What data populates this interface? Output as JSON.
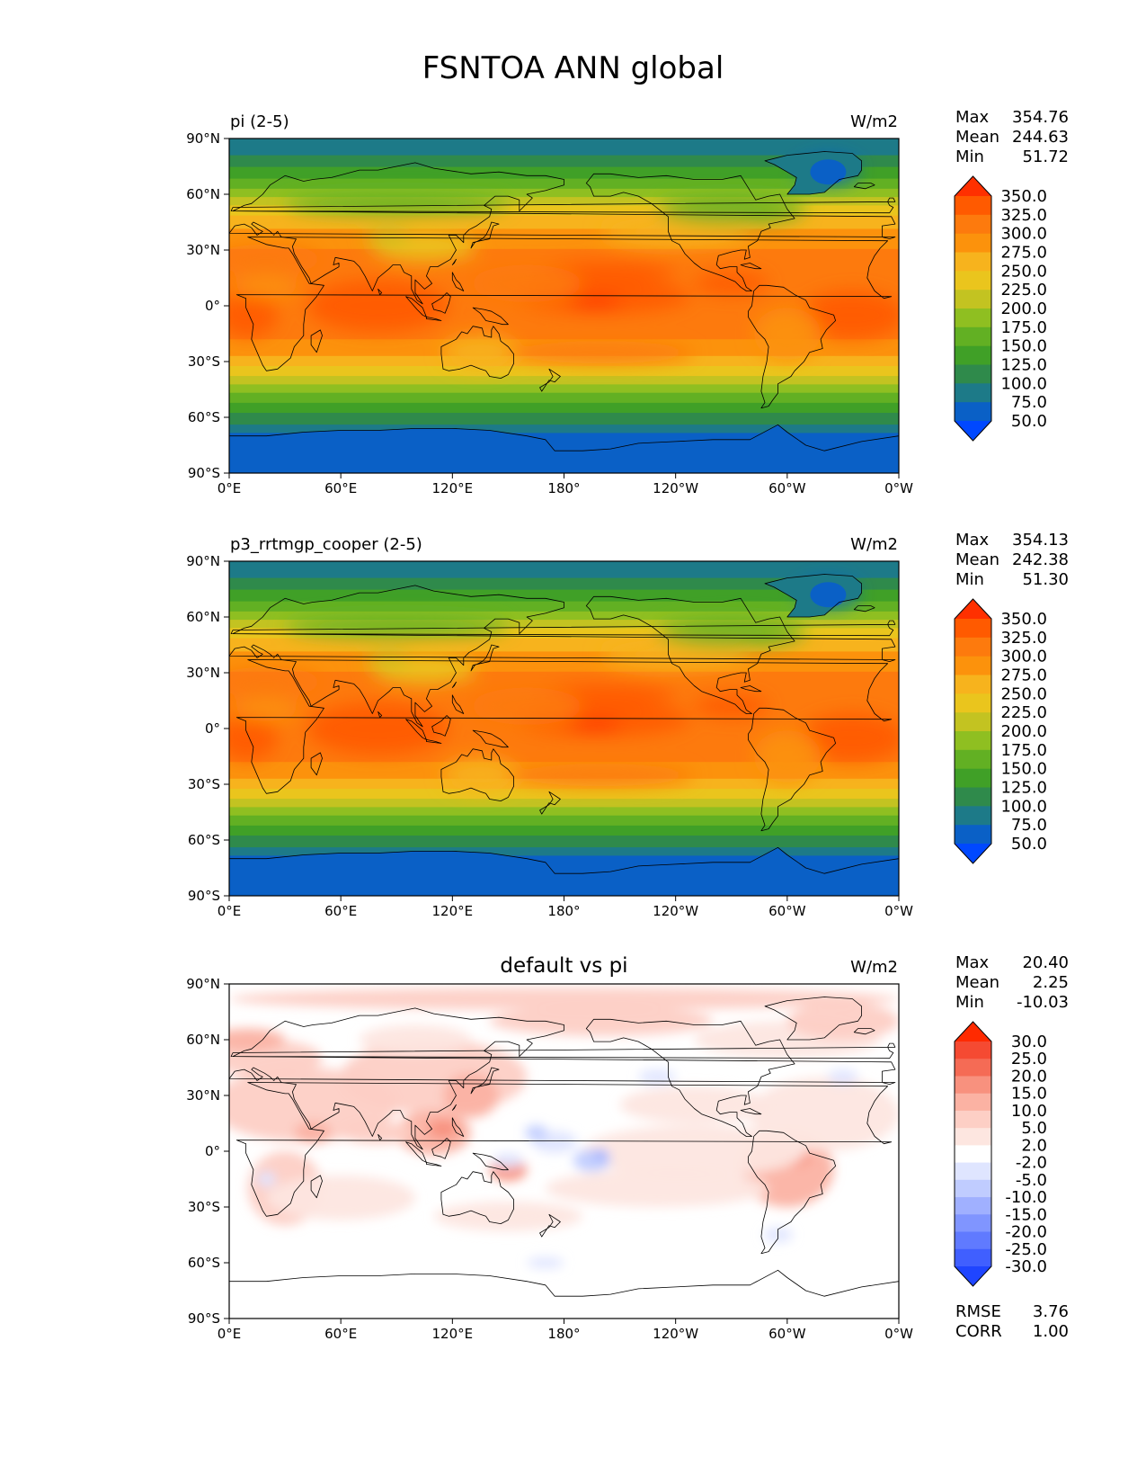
{
  "title": "FSNTOA ANN global",
  "x_ticks": [
    "0°E",
    "60°E",
    "120°E",
    "180°",
    "120°W",
    "60°W",
    "0°W"
  ],
  "y_ticks": [
    "90°N",
    "60°N",
    "30°N",
    "0°",
    "30°S",
    "60°S",
    "90°S"
  ],
  "panels": [
    {
      "left_title": "pi (2-5)",
      "center_title": "",
      "units": "W/m2",
      "stats": [
        {
          "label": "Max",
          "value": "354.76"
        },
        {
          "label": "Mean",
          "value": "244.63"
        },
        {
          "label": "Min",
          "value": "51.72"
        }
      ],
      "colorbar_labels": [
        "350.0",
        "325.0",
        "300.0",
        "275.0",
        "250.0",
        "225.0",
        "200.0",
        "175.0",
        "150.0",
        "125.0",
        "100.0",
        "75.0",
        "50.0"
      ],
      "colorbar_colors": [
        "#ff3000",
        "#ff5a00",
        "#fd7a0d",
        "#fc920c",
        "#f7b31d",
        "#eac51d",
        "#c3c321",
        "#8fbf21",
        "#62b023",
        "#40a027",
        "#2f8a4b",
        "#1d7a88",
        "#0a60c6",
        "#0048ff"
      ],
      "extra_stats": []
    },
    {
      "left_title": "p3_rrtmgp_cooper (2-5)",
      "center_title": "",
      "units": "W/m2",
      "stats": [
        {
          "label": "Max",
          "value": "354.13"
        },
        {
          "label": "Mean",
          "value": "242.38"
        },
        {
          "label": "Min",
          "value": "51.30"
        }
      ],
      "colorbar_labels": [
        "350.0",
        "325.0",
        "300.0",
        "275.0",
        "250.0",
        "225.0",
        "200.0",
        "175.0",
        "150.0",
        "125.0",
        "100.0",
        "75.0",
        "50.0"
      ],
      "colorbar_colors": [
        "#ff3000",
        "#ff5a00",
        "#fd7a0d",
        "#fc920c",
        "#f7b31d",
        "#eac51d",
        "#c3c321",
        "#8fbf21",
        "#62b023",
        "#40a027",
        "#2f8a4b",
        "#1d7a88",
        "#0a60c6",
        "#0048ff"
      ],
      "extra_stats": []
    },
    {
      "left_title": "",
      "center_title": "default vs pi",
      "units": "W/m2",
      "stats": [
        {
          "label": "Max",
          "value": "20.40"
        },
        {
          "label": "Mean",
          "value": "2.25"
        },
        {
          "label": "Min",
          "value": "-10.03"
        }
      ],
      "colorbar_labels": [
        "30.0",
        "25.0",
        "20.0",
        "15.0",
        "10.0",
        "5.0",
        "2.0",
        "-2.0",
        "-5.0",
        "-10.0",
        "-15.0",
        "-20.0",
        "-25.0",
        "-30.0"
      ],
      "colorbar_colors": [
        "#ff2a00",
        "#f54a32",
        "#f56b55",
        "#f8917e",
        "#fbb2a3",
        "#fdcfc5",
        "#fde6e0",
        "#ffffff",
        "#dfe5ff",
        "#c0ccff",
        "#a0b0ff",
        "#8095ff",
        "#607aff",
        "#405fff",
        "#1f45ff"
      ],
      "extra_stats": [
        {
          "label": "RMSE",
          "value": "3.76"
        },
        {
          "label": "CORR",
          "value": "1.00"
        }
      ]
    }
  ]
}
